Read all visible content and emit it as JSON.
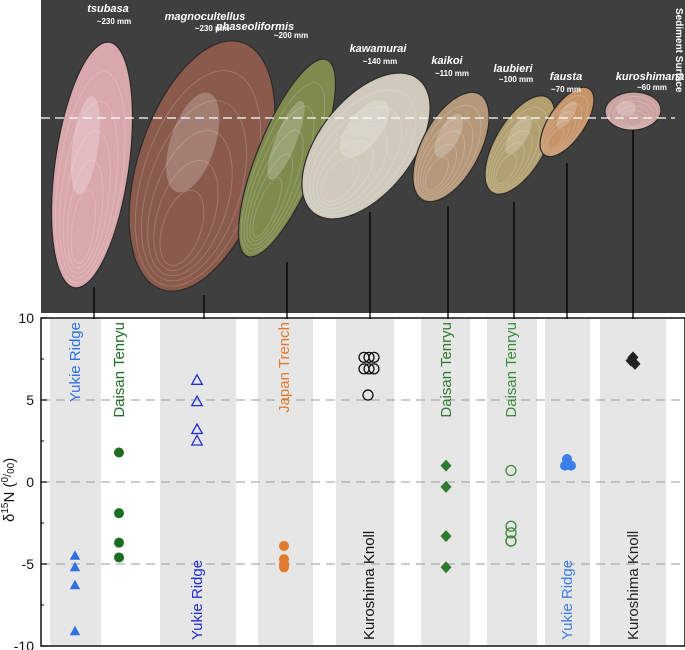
{
  "chart_data": {
    "type": "scatter",
    "ylabel_main": "δ",
    "ylabel_sup": "15",
    "ylabel_n": "N (",
    "ylabel_permil_top": "0",
    "ylabel_permil_bottom": "00",
    "ylabel_close": ")",
    "ylim": [
      -10,
      10
    ],
    "yticks": [
      -10,
      -5,
      0,
      5,
      10
    ],
    "ytick_labels": [
      "-10",
      "-5",
      "0",
      "5",
      "10"
    ],
    "gridlines": [
      -5,
      0,
      5
    ],
    "sediment_label": "Sediment Surface",
    "species": [
      {
        "name": "tsubasa",
        "size": "~230 mm",
        "color": "#d9a8ad"
      },
      {
        "name": "magnocultellus",
        "size": "~230 mm",
        "color": "#8a5a4c"
      },
      {
        "name": "phaseoliformis",
        "size": "~200 mm",
        "color": "#7e8a4e"
      },
      {
        "name": "kawamurai",
        "size": "~140 mm",
        "color": "#cfcabb"
      },
      {
        "name": "kaikoi",
        "size": "~110 mm",
        "color": "#b59879"
      },
      {
        "name": "laubieri",
        "size": "~100 mm",
        "color": "#b3a071"
      },
      {
        "name": "fausta",
        "size": "~70 mm",
        "color": "#c59468"
      },
      {
        "name": "kuroshimana",
        "size": "~60 mm",
        "color": "#caa3a0"
      }
    ],
    "series": [
      {
        "site": "Yukie Ridge",
        "color": "#2f6fe4",
        "marker": "triangle-filled",
        "values": [
          -4.5,
          -5.2,
          -6.3,
          -9.1
        ]
      },
      {
        "site": "Daisan Tenryu",
        "color": "#1e6b22",
        "marker": "circle-filled",
        "values": [
          1.8,
          -1.9,
          -3.7,
          -4.6
        ]
      },
      {
        "site": "Yukie Ridge",
        "color": "#1f2fcf",
        "marker": "triangle-open",
        "values": [
          6.2,
          4.9,
          3.2,
          2.5
        ]
      },
      {
        "site": "Japan Trench",
        "color": "#e07a2f",
        "marker": "circle-filled",
        "values": [
          -3.9,
          -4.7,
          -5.0,
          -5.1,
          -5.2
        ]
      },
      {
        "site": "Kuroshima Knoll",
        "color": "#111111",
        "marker": "circle-open",
        "values": [
          7.6,
          7.6,
          7.6,
          6.9,
          6.9,
          6.9,
          5.3
        ]
      },
      {
        "site": "Daisan Tenryu",
        "color": "#2f7a2f",
        "marker": "diamond-filled",
        "values": [
          1.0,
          -0.3,
          -3.3,
          -5.2
        ]
      },
      {
        "site": "Daisan Tenryu",
        "color": "#3a8a3a",
        "marker": "circle-open",
        "values": [
          0.7,
          -2.7,
          -3.1,
          -3.6,
          -3.6
        ]
      },
      {
        "site": "Yukie Ridge",
        "color": "#3c7ee8",
        "marker": "circle-filled",
        "values": [
          1.4,
          1.0,
          1.1,
          1.0
        ]
      },
      {
        "site": "Kuroshima Knoll",
        "color": "#222222",
        "marker": "diamond-filled",
        "values": [
          7.6,
          7.4,
          7.2
        ]
      }
    ]
  }
}
